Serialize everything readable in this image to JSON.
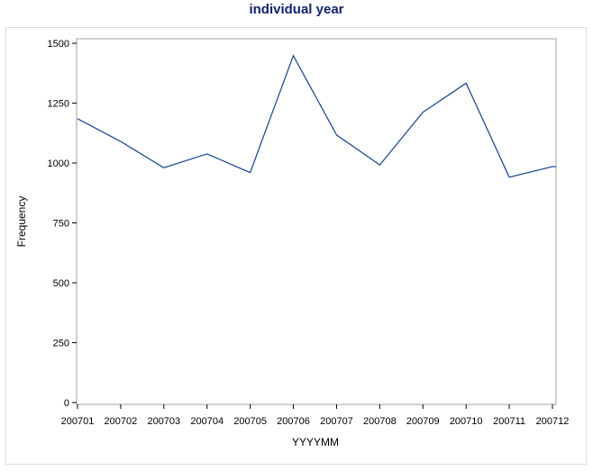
{
  "chart_data": {
    "type": "line",
    "title": "individual year",
    "xlabel": "YYYYMM",
    "ylabel": "Frequency",
    "categories": [
      "200701",
      "200702",
      "200703",
      "200704",
      "200705",
      "200706",
      "200707",
      "200708",
      "200709",
      "200710",
      "200711",
      "200712"
    ],
    "series": [
      {
        "values": [
          1185,
          1090,
          980,
          1038,
          960,
          1448,
          1117,
          992,
          1212,
          1333,
          941,
          985
        ],
        "color": "#1f4e9c"
      }
    ],
    "yticks": [
      "0",
      "250",
      "500",
      "750",
      "1000",
      "1250",
      "1500"
    ],
    "ylim": [
      0,
      1500
    ],
    "grid": false
  }
}
